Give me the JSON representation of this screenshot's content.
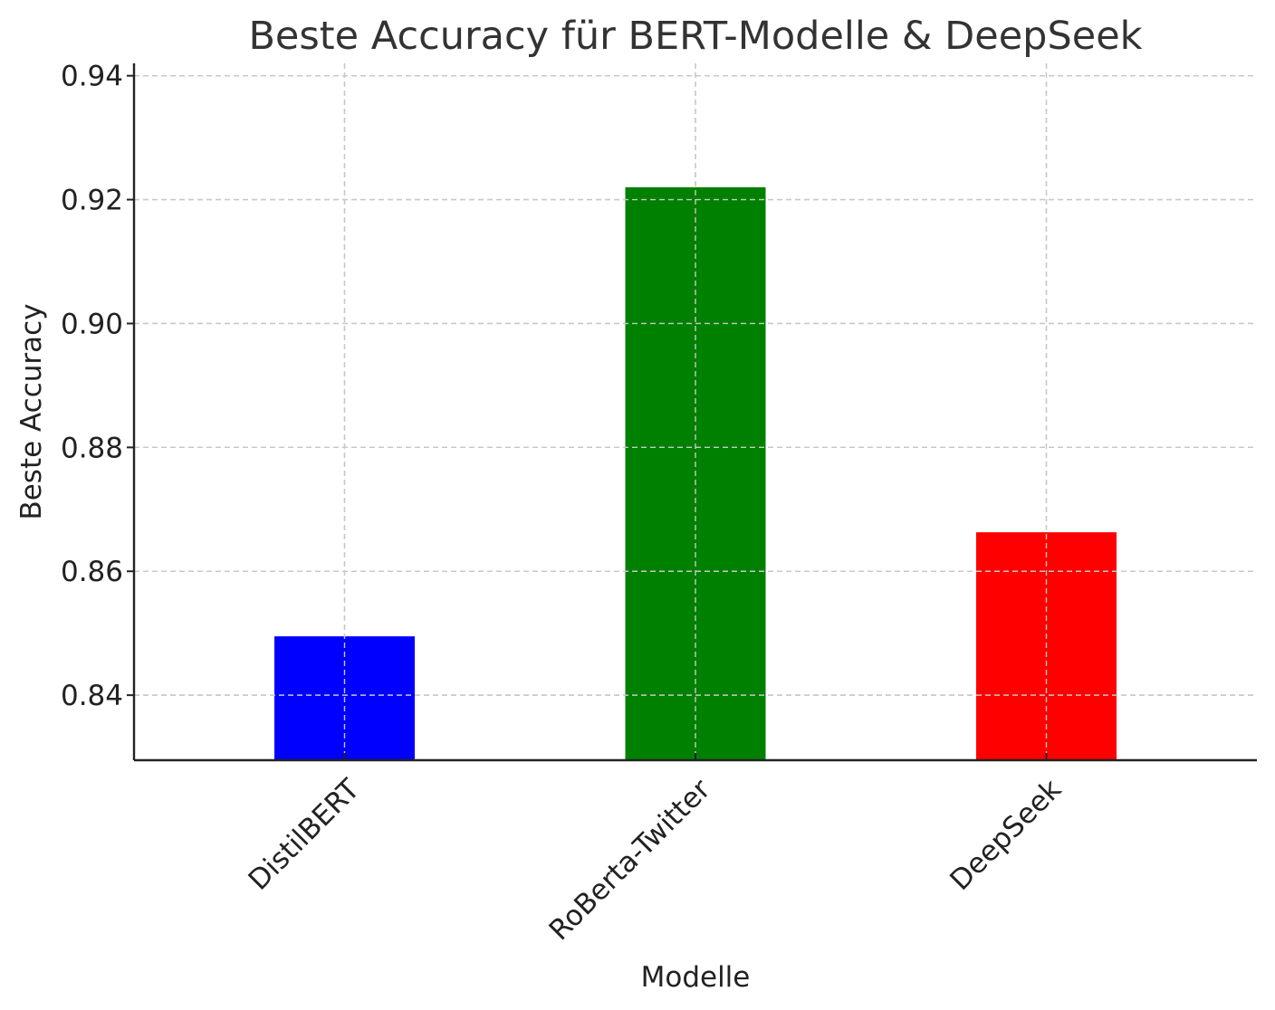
{
  "chart_data": {
    "type": "bar",
    "title": "Beste Accuracy für BERT-Modelle & DeepSeek",
    "xlabel": "Modelle",
    "ylabel": "Beste Accuracy",
    "categories": [
      "DistilBERT",
      "RoBerta-Twitter",
      "DeepSeek"
    ],
    "values": [
      0.8495,
      0.922,
      0.8663
    ],
    "colors": [
      "#0000ff",
      "#008000",
      "#ff0000"
    ],
    "ylim": [
      0.8295,
      0.942
    ],
    "yticks": [
      0.84,
      0.86,
      0.88,
      0.9,
      0.92,
      0.94
    ],
    "ytick_labels": [
      "0.84",
      "0.86",
      "0.88",
      "0.90",
      "0.92",
      "0.94"
    ],
    "grid": true,
    "legend": "none"
  }
}
